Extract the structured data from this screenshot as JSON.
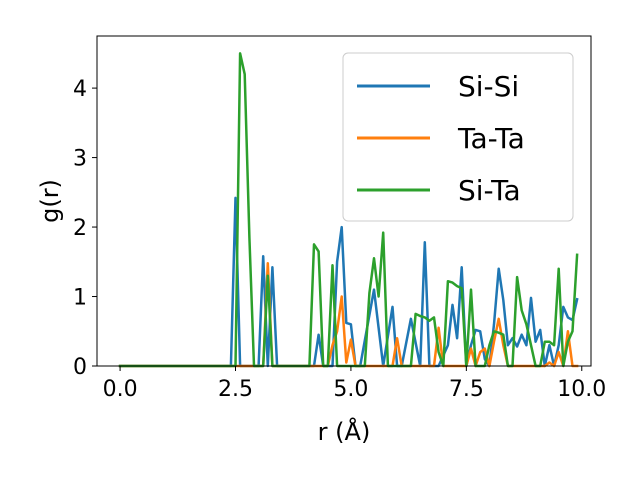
{
  "chart_data": {
    "type": "line",
    "title": "",
    "xlabel": "r (Å)",
    "ylabel": "g(r)",
    "xlim": [
      -0.5,
      10.2
    ],
    "ylim": [
      0,
      4.75
    ],
    "xticks": [
      0.0,
      2.5,
      5.0,
      7.5,
      10.0
    ],
    "xtick_labels": [
      "0.0",
      "2.5",
      "5.0",
      "7.5",
      "10.0"
    ],
    "yticks": [
      0,
      1,
      2,
      3,
      4
    ],
    "ytick_labels": [
      "0",
      "1",
      "2",
      "3",
      "4"
    ],
    "grid": false,
    "legend_position": "top-right",
    "series": [
      {
        "name": "Si-Si",
        "color": "#1f77b4",
        "x": [
          0.0,
          2.4,
          2.5,
          2.6,
          2.7,
          2.8,
          3.0,
          3.1,
          3.2,
          3.3,
          3.4,
          4.2,
          4.3,
          4.4,
          4.6,
          4.7,
          4.8,
          4.9,
          5.0,
          5.1,
          5.2,
          5.5,
          5.6,
          5.7,
          5.9,
          6.0,
          6.1,
          6.3,
          6.5,
          6.6,
          6.7,
          6.8,
          6.9,
          7.1,
          7.2,
          7.3,
          7.4,
          7.5,
          7.6,
          7.7,
          7.8,
          7.9,
          8.0,
          8.1,
          8.2,
          8.3,
          8.4,
          8.5,
          8.6,
          8.7,
          8.8,
          8.9,
          9.0,
          9.1,
          9.2,
          9.3,
          9.4,
          9.5,
          9.6,
          9.7,
          9.8,
          9.9
        ],
        "y": [
          0,
          0,
          2.42,
          0,
          0,
          0,
          0,
          1.58,
          0,
          1.42,
          0,
          0,
          0.45,
          0,
          0,
          1.5,
          2.0,
          0.62,
          0.6,
          0,
          0,
          1.1,
          0.55,
          0,
          0.85,
          0,
          0,
          0.68,
          0,
          1.78,
          0,
          0,
          0,
          0.3,
          0.88,
          0.4,
          1.42,
          0,
          0.3,
          0.52,
          0.5,
          0.1,
          0,
          0.6,
          1.4,
          0.95,
          0.3,
          0.4,
          0.28,
          0.45,
          0.3,
          0.98,
          0.35,
          0.52,
          0,
          0.3,
          0,
          0.3,
          0.85,
          0.7,
          0.66,
          0.96
        ]
      },
      {
        "name": "Ta-Ta",
        "color": "#ff7f0e",
        "x": [
          0.0,
          3.0,
          3.1,
          3.2,
          3.3,
          4.5,
          4.6,
          4.7,
          4.8,
          4.9,
          5.0,
          5.1,
          5.9,
          6.0,
          6.1,
          6.8,
          6.9,
          7.0,
          7.5,
          7.6,
          7.7,
          7.8,
          7.9,
          8.0,
          8.1,
          8.2,
          8.3,
          8.4,
          9.2,
          9.3,
          9.4,
          9.5,
          9.6,
          9.7,
          9.8,
          9.9
        ],
        "y": [
          0,
          0,
          0,
          1.48,
          0,
          0,
          0.3,
          0.5,
          1.0,
          0.05,
          0.38,
          0,
          0,
          0.4,
          0,
          0,
          0.55,
          0,
          0,
          0.25,
          0,
          0.2,
          0.25,
          0,
          0.35,
          0.68,
          0.3,
          0,
          0,
          0.05,
          0,
          0.2,
          0,
          0.5,
          0,
          0
        ]
      },
      {
        "name": "Si-Ta",
        "color": "#2ca02c",
        "x": [
          0.0,
          2.4,
          2.5,
          2.6,
          2.7,
          2.8,
          2.9,
          3.1,
          3.2,
          3.3,
          3.4,
          4.0,
          4.1,
          4.2,
          4.3,
          4.4,
          4.5,
          4.6,
          4.7,
          4.8,
          5.2,
          5.3,
          5.4,
          5.5,
          5.6,
          5.7,
          5.8,
          5.9,
          6.3,
          6.4,
          6.5,
          6.6,
          6.7,
          6.8,
          6.9,
          7.0,
          7.1,
          7.2,
          7.3,
          7.4,
          7.5,
          7.6,
          7.7,
          7.8,
          7.9,
          8.0,
          8.1,
          8.2,
          8.3,
          8.4,
          8.5,
          8.6,
          8.7,
          8.8,
          8.9,
          9.0,
          9.1,
          9.2,
          9.3,
          9.4,
          9.5,
          9.6,
          9.7,
          9.8,
          9.9
        ],
        "y": [
          0,
          0,
          0,
          4.5,
          4.2,
          1.85,
          0,
          0,
          1.3,
          0,
          0,
          0,
          0,
          1.75,
          1.65,
          0,
          0,
          1.45,
          0,
          0,
          0,
          0,
          1.05,
          1.55,
          1.0,
          1.92,
          0,
          0,
          0,
          0.75,
          0.72,
          0.7,
          0.65,
          0.7,
          0.2,
          0,
          1.22,
          1.2,
          1.15,
          1.12,
          0,
          1.1,
          0,
          0,
          0,
          0.3,
          0.5,
          0.48,
          0.45,
          0,
          0,
          1.28,
          0.8,
          0.6,
          0.3,
          0,
          0,
          0.35,
          0.35,
          0.3,
          1.4,
          0,
          0.35,
          0.5,
          1.6
        ]
      }
    ]
  }
}
